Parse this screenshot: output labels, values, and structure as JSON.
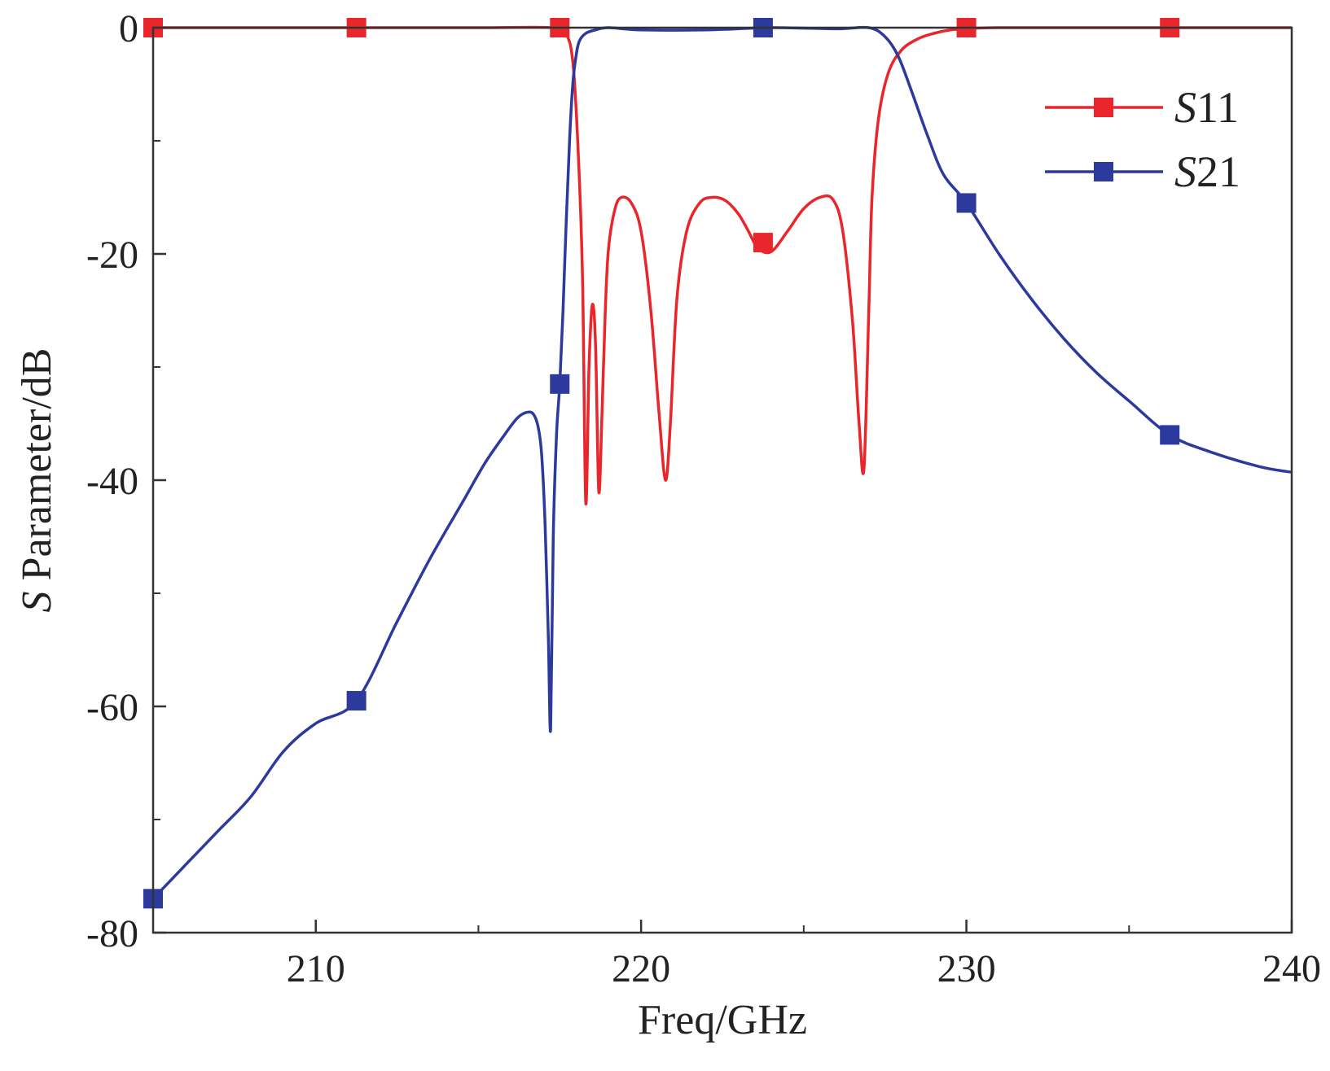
{
  "chart_data": {
    "type": "line",
    "xlabel": "Freq/GHz",
    "ylabel": "S Parameter/dB",
    "ylabel_italic": "S",
    "ylabel_rest": " Parameter/dB",
    "xlim": [
      205,
      240
    ],
    "ylim": [
      -80,
      0
    ],
    "xticks": [
      210,
      220,
      230,
      240
    ],
    "xtick_labels": [
      "210",
      "220",
      "230",
      "240"
    ],
    "xticks_minor": [
      215,
      225,
      235
    ],
    "yticks": [
      0,
      -20,
      -40,
      -60,
      -80
    ],
    "ytick_labels": [
      "0",
      "-20",
      "-40",
      "-60",
      "-80"
    ],
    "yticks_minor": [
      -10,
      -30,
      -50,
      -70
    ],
    "grid": false,
    "legend_position": "top-right",
    "series": [
      {
        "name": "S11",
        "name_italic": "S",
        "name_rest": "11",
        "color": "#e8262b",
        "marker": "square",
        "x": [
          205,
          210,
          215,
          217.3,
          217.7,
          217.9,
          218.05,
          218.2,
          218.3,
          218.4,
          218.5,
          218.6,
          218.7,
          218.8,
          218.9,
          219.0,
          219.2,
          219.4,
          219.7,
          220.0,
          220.3,
          220.55,
          220.75,
          220.9,
          221.1,
          221.4,
          221.8,
          222.2,
          222.6,
          223.0,
          223.3,
          223.6,
          224.0,
          224.5,
          225.0,
          225.5,
          225.9,
          226.2,
          226.5,
          226.7,
          226.85,
          227.0,
          227.1,
          227.3,
          227.6,
          228.0,
          228.5,
          229.0,
          229.5,
          230.0,
          231.0,
          235.0,
          240.0
        ],
        "y": [
          0,
          0,
          0,
          0,
          -0.6,
          -3,
          -10,
          -22,
          -42,
          -30,
          -24.5,
          -28,
          -41,
          -34,
          -25,
          -19.5,
          -16,
          -15,
          -15.5,
          -18,
          -25,
          -34,
          -40,
          -35,
          -24,
          -18,
          -15.5,
          -15,
          -15.3,
          -16.5,
          -18,
          -19.5,
          -19.8,
          -18,
          -16,
          -15,
          -15.2,
          -18,
          -26,
          -35,
          -39,
          -25,
          -15,
          -8,
          -4,
          -2,
          -1,
          -0.5,
          -0.2,
          -0.1,
          0,
          0,
          0
        ],
        "marker_x": [
          205,
          211.25,
          217.5,
          223.75,
          230,
          236.25
        ],
        "marker_y": [
          0,
          0,
          0,
          -19,
          0,
          0
        ]
      },
      {
        "name": "S21",
        "name_italic": "S",
        "name_rest": "21",
        "color": "#2b3a9c",
        "marker": "square",
        "x": [
          205,
          206,
          207,
          208,
          209,
          210,
          211.25,
          212.5,
          213.5,
          214.5,
          215.2,
          215.8,
          216.2,
          216.5,
          216.7,
          216.85,
          216.95,
          217.05,
          217.15,
          217.22,
          217.3,
          217.4,
          217.5,
          217.6,
          217.7,
          217.8,
          217.9,
          218.0,
          218.1,
          218.3,
          218.6,
          219.0,
          220.0,
          222.0,
          224.0,
          226.0,
          227.0,
          227.5,
          227.9,
          228.3,
          228.8,
          229.3,
          230.0,
          231.0,
          232.0,
          233.0,
          234.0,
          235.0,
          236.25,
          237.5,
          239.0,
          240.0
        ],
        "y": [
          -77,
          -74,
          -71,
          -68,
          -64,
          -61.5,
          -59.5,
          -52.5,
          -47,
          -42,
          -38.5,
          -36,
          -34.5,
          -34,
          -34.2,
          -35.5,
          -38,
          -44,
          -54,
          -62,
          -45,
          -36,
          -31.5,
          -25,
          -17,
          -10,
          -5,
          -2.5,
          -1.2,
          -0.5,
          -0.2,
          0,
          -0.2,
          -0.2,
          0,
          -0.1,
          0,
          -0.8,
          -2.5,
          -5.5,
          -9.5,
          -13,
          -15.5,
          -20,
          -24,
          -27.5,
          -30.5,
          -33,
          -36,
          -37.5,
          -38.8,
          -39.3
        ],
        "marker_x": [
          205,
          211.25,
          217.5,
          223.75,
          230,
          236.25
        ],
        "marker_y": [
          -77,
          -59.5,
          -31.5,
          0,
          -15.5,
          -36
        ]
      }
    ]
  }
}
